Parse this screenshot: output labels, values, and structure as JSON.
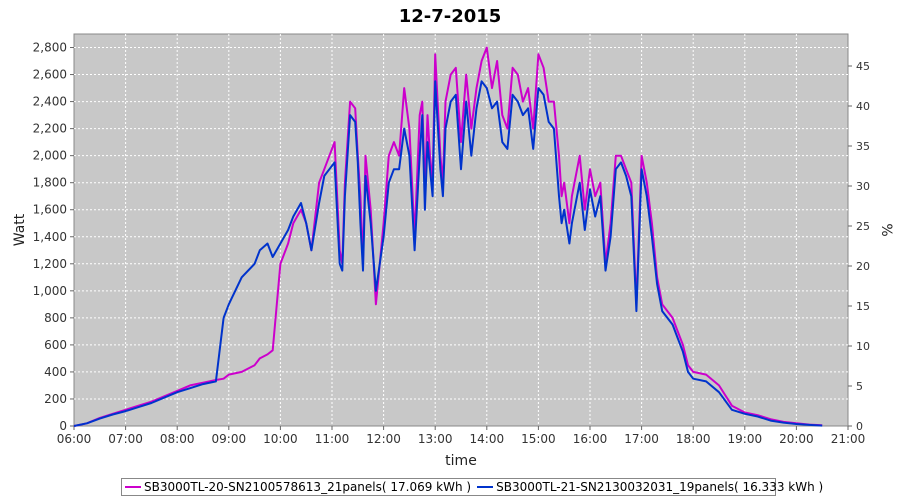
{
  "chart_data": {
    "type": "line",
    "title": "12-7-2015",
    "xlabel": "time",
    "ylabel": "Watt",
    "y2label": "%",
    "xlim": [
      6,
      21
    ],
    "ylim": [
      0,
      2900
    ],
    "y2lim": [
      0,
      49
    ],
    "x_ticks": [
      "06:00",
      "07:00",
      "08:00",
      "09:00",
      "10:00",
      "11:00",
      "12:00",
      "13:00",
      "14:00",
      "15:00",
      "16:00",
      "17:00",
      "18:00",
      "19:00",
      "20:00",
      "21:00"
    ],
    "y_ticks": [
      "0",
      "200",
      "400",
      "600",
      "800",
      "1,000",
      "1,200",
      "1,400",
      "1,600",
      "1,800",
      "2,000",
      "2,200",
      "2,400",
      "2,600",
      "2,800"
    ],
    "y2_ticks": [
      "0",
      "5",
      "10",
      "15",
      "20",
      "25",
      "30",
      "35",
      "40",
      "45"
    ],
    "grid": true,
    "legend_position": "bottom",
    "x_hours": [
      6.0,
      6.25,
      6.5,
      6.75,
      7.0,
      7.25,
      7.5,
      7.75,
      8.0,
      8.25,
      8.5,
      8.75,
      8.9,
      9.0,
      9.25,
      9.5,
      9.6,
      9.75,
      9.85,
      10.0,
      10.15,
      10.25,
      10.4,
      10.5,
      10.6,
      10.75,
      10.85,
      10.95,
      11.05,
      11.15,
      11.2,
      11.25,
      11.35,
      11.45,
      11.5,
      11.55,
      11.6,
      11.65,
      11.75,
      11.85,
      12.0,
      12.1,
      12.2,
      12.3,
      12.4,
      12.5,
      12.6,
      12.7,
      12.75,
      12.8,
      12.85,
      12.9,
      12.95,
      13.0,
      13.1,
      13.15,
      13.2,
      13.3,
      13.4,
      13.5,
      13.6,
      13.7,
      13.8,
      13.9,
      14.0,
      14.1,
      14.2,
      14.3,
      14.4,
      14.5,
      14.6,
      14.7,
      14.8,
      14.9,
      15.0,
      15.1,
      15.2,
      15.3,
      15.4,
      15.45,
      15.5,
      15.6,
      15.65,
      15.7,
      15.8,
      15.9,
      16.0,
      16.1,
      16.2,
      16.3,
      16.4,
      16.5,
      16.6,
      16.7,
      16.8,
      16.9,
      17.0,
      17.1,
      17.2,
      17.3,
      17.4,
      17.5,
      17.6,
      17.7,
      17.8,
      17.9,
      18.0,
      18.25,
      18.5,
      18.75,
      19.0,
      19.25,
      19.5,
      19.75,
      20.0,
      20.25,
      20.5,
      20.75,
      20.85
    ],
    "series": [
      {
        "name": "SB3000TL-20-SN2100578613_21panels( 17.069 kWh )",
        "color": "#cc00cc",
        "values": [
          0,
          20,
          60,
          90,
          120,
          150,
          180,
          220,
          260,
          300,
          320,
          340,
          350,
          380,
          400,
          450,
          500,
          530,
          560,
          1200,
          1350,
          1500,
          1600,
          1500,
          1300,
          1800,
          1900,
          2000,
          2100,
          1300,
          1200,
          1800,
          2400,
          2350,
          2000,
          1700,
          1200,
          2000,
          1600,
          900,
          1500,
          2000,
          2100,
          2000,
          2500,
          2200,
          1400,
          2300,
          2400,
          1750,
          2300,
          2000,
          1800,
          2750,
          2000,
          1800,
          2400,
          2600,
          2650,
          2100,
          2600,
          2200,
          2500,
          2700,
          2800,
          2500,
          2700,
          2300,
          2200,
          2650,
          2600,
          2400,
          2500,
          2200,
          2750,
          2650,
          2400,
          2400,
          2000,
          1700,
          1800,
          1500,
          1700,
          1800,
          2000,
          1600,
          1900,
          1700,
          1800,
          1200,
          1500,
          2000,
          2000,
          1900,
          1800,
          900,
          2000,
          1800,
          1500,
          1100,
          900,
          850,
          800,
          700,
          600,
          450,
          400,
          380,
          300,
          150,
          100,
          80,
          50,
          30,
          20,
          10,
          5
        ]
      },
      {
        "name": "SB3000TL-21-SN2130032031_19panels( 16.333 kWh )",
        "color": "#0033cc",
        "values": [
          0,
          20,
          55,
          85,
          110,
          140,
          170,
          210,
          250,
          280,
          310,
          330,
          800,
          900,
          1100,
          1200,
          1300,
          1350,
          1250,
          1350,
          1450,
          1550,
          1650,
          1500,
          1300,
          1650,
          1850,
          1900,
          1950,
          1200,
          1150,
          1700,
          2300,
          2250,
          1950,
          1500,
          1150,
          1850,
          1500,
          1000,
          1400,
          1800,
          1900,
          1900,
          2200,
          2000,
          1300,
          2000,
          2300,
          1600,
          2100,
          1900,
          1700,
          2550,
          1900,
          1700,
          2200,
          2400,
          2450,
          1900,
          2400,
          2000,
          2350,
          2550,
          2500,
          2350,
          2400,
          2100,
          2050,
          2450,
          2400,
          2300,
          2350,
          2050,
          2500,
          2450,
          2250,
          2200,
          1700,
          1500,
          1600,
          1350,
          1500,
          1600,
          1800,
          1450,
          1750,
          1550,
          1700,
          1150,
          1400,
          1900,
          1950,
          1850,
          1700,
          850,
          1900,
          1700,
          1400,
          1050,
          850,
          800,
          750,
          650,
          550,
          400,
          350,
          330,
          250,
          120,
          90,
          70,
          40,
          25,
          15,
          8,
          3
        ]
      }
    ]
  }
}
